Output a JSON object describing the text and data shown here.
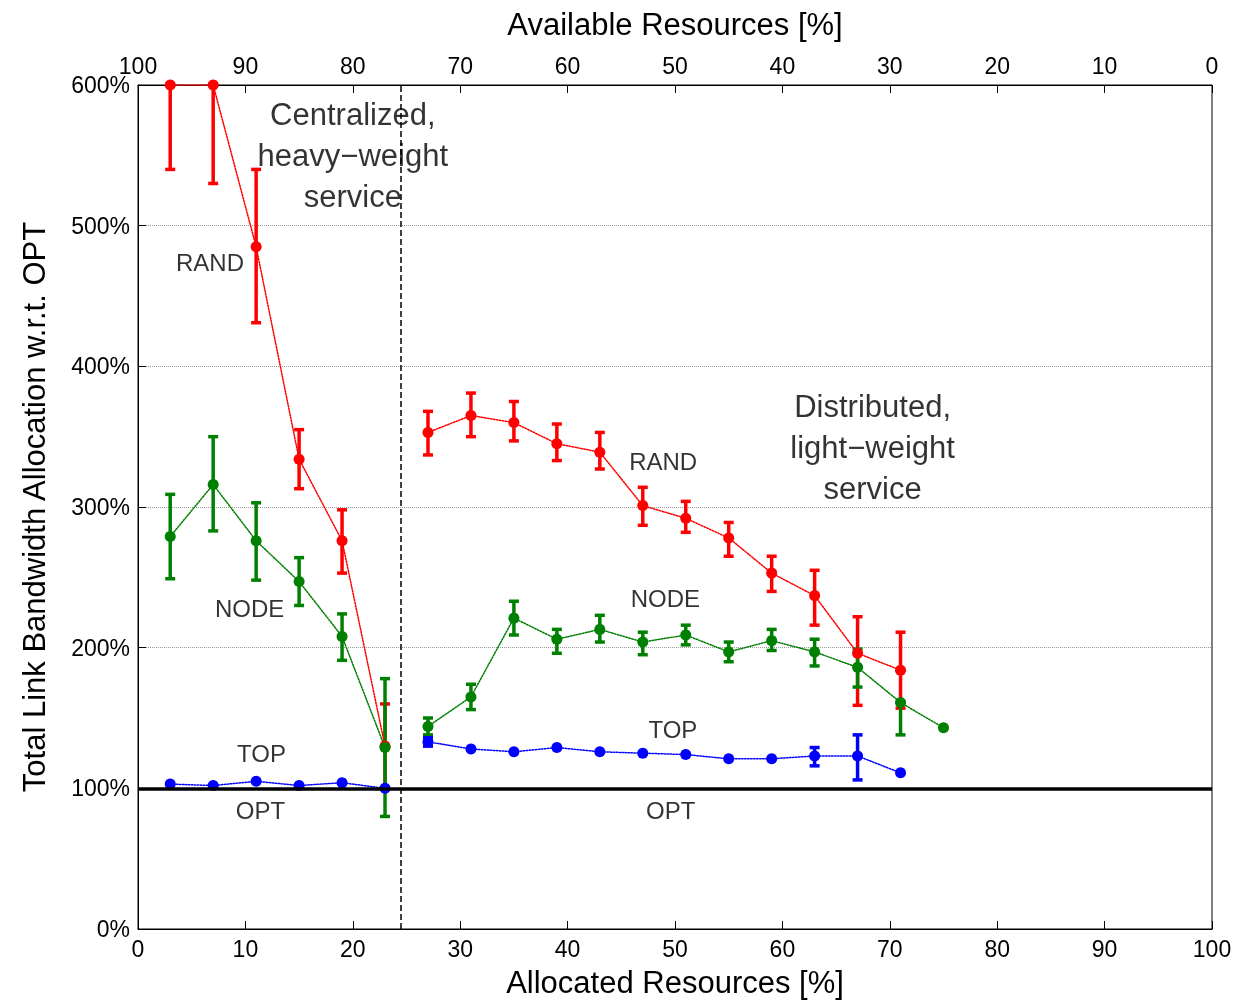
{
  "chart_data": {
    "type": "line",
    "xlabel": "Allocated Resources [%]",
    "ylabel": "Total Link Bandwidth Allocation w.r.t. OPT",
    "x2label": "Available Resources [%]",
    "x": [
      3,
      7,
      11,
      15,
      19,
      23,
      25,
      27,
      31,
      35,
      39,
      43,
      47,
      51,
      55,
      59,
      63,
      67,
      71,
      75
    ],
    "xlim": [
      0,
      100
    ],
    "xticks": [
      0,
      10,
      20,
      30,
      40,
      50,
      60,
      70,
      80,
      90,
      100
    ],
    "x2lim": [
      100,
      0
    ],
    "x2ticks": [
      100,
      90,
      80,
      70,
      60,
      50,
      40,
      30,
      20,
      10,
      0
    ],
    "ylim": [
      0,
      600
    ],
    "yticks": [
      {
        "value": 0,
        "label": "0%"
      },
      {
        "value": 100,
        "label": "100%"
      },
      {
        "value": 200,
        "label": "200%"
      },
      {
        "value": 300,
        "label": "300%"
      },
      {
        "value": 400,
        "label": "400%"
      },
      {
        "value": 500,
        "label": "500%"
      },
      {
        "value": 600,
        "label": "600%"
      }
    ],
    "grid": "y",
    "marker": "circle",
    "line_style": "dotted",
    "legend": false,
    "series": [
      {
        "color": "#ff0000",
        "values": [
          600,
          600,
          485,
          334,
          276,
          130,
          null,
          353,
          365,
          360,
          345,
          339,
          301,
          292,
          278,
          253,
          237,
          196,
          184,
          null
        ],
        "errors": [
          [
            540,
            600
          ],
          [
            530,
            600
          ],
          [
            431,
            540
          ],
          [
            313,
            355
          ],
          [
            253,
            298
          ],
          [
            100,
            160
          ],
          null,
          [
            337,
            368
          ],
          [
            350,
            381
          ],
          [
            347,
            375
          ],
          [
            333,
            359
          ],
          [
            327,
            353
          ],
          [
            287,
            314
          ],
          [
            282,
            304
          ],
          [
            265,
            289
          ],
          [
            240,
            265
          ],
          [
            216,
            255
          ],
          [
            159,
            222
          ],
          [
            157,
            211
          ],
          null
        ]
      },
      {
        "color": "#008000",
        "values": [
          279,
          316,
          276,
          247,
          208,
          129,
          null,
          144,
          165,
          221,
          206,
          213,
          204,
          209,
          197,
          205,
          197,
          186,
          161,
          143
        ],
        "errors": [
          [
            249,
            309
          ],
          [
            283,
            350
          ],
          [
            248,
            303
          ],
          [
            230,
            264
          ],
          [
            191,
            224
          ],
          [
            80,
            178
          ],
          null,
          [
            138,
            150
          ],
          [
            156,
            174
          ],
          [
            209,
            233
          ],
          [
            196,
            213
          ],
          [
            204,
            223
          ],
          [
            195,
            211
          ],
          [
            202,
            216
          ],
          [
            190,
            204
          ],
          [
            198,
            213
          ],
          [
            187,
            206
          ],
          [
            172,
            199
          ],
          [
            138,
            161
          ],
          null
        ]
      },
      {
        "color": "#0000ff",
        "values": [
          103,
          102,
          105,
          102,
          104,
          100,
          null,
          133,
          128,
          126,
          129,
          126,
          125,
          124,
          121,
          121,
          123,
          123,
          111,
          null
        ],
        "errors": [
          null,
          null,
          null,
          null,
          null,
          null,
          null,
          [
            130,
            136
          ],
          null,
          null,
          null,
          null,
          null,
          null,
          null,
          null,
          [
            116,
            129
          ],
          [
            106,
            138
          ],
          null,
          null
        ]
      }
    ],
    "ref_lines": [
      {
        "axis": "y",
        "value": 100,
        "color": "#000000",
        "line_style": "solid"
      },
      {
        "axis": "x",
        "value": 24.5,
        "color": "#000000",
        "line_style": "dashed"
      }
    ],
    "annotations": [
      "Centralized,\nheavy−weight\nservice",
      "Distributed,\nlight−weight\nservice",
      "RAND",
      "NODE",
      "TOP",
      "OPT",
      "RAND",
      "NODE",
      "TOP",
      "OPT"
    ]
  }
}
